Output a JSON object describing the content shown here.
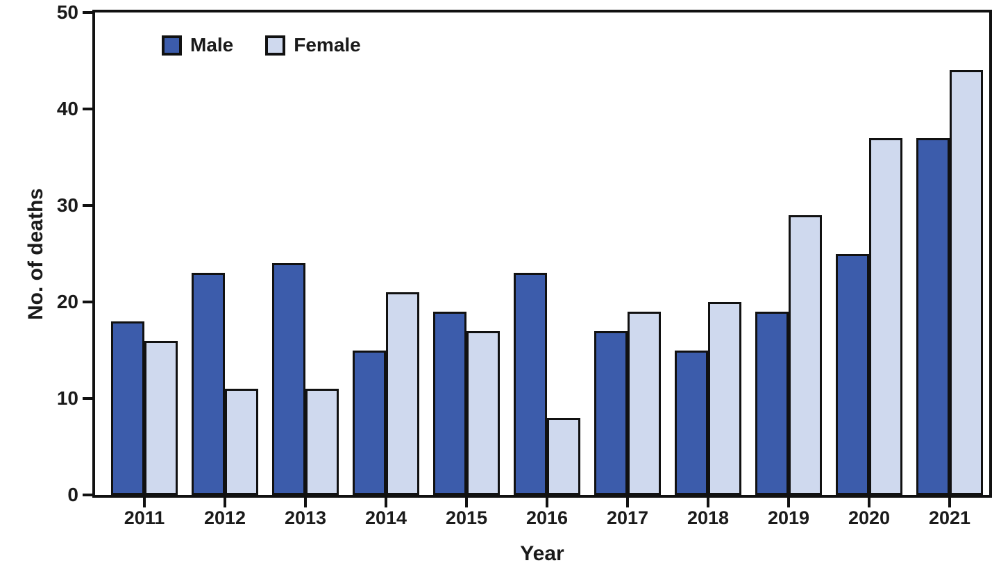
{
  "figure": {
    "background": "#ffffff",
    "text_color": "#1a1a1a",
    "axis_color": "#111111"
  },
  "chart_data": {
    "type": "bar",
    "categories": [
      "2011",
      "2012",
      "2013",
      "2014",
      "2015",
      "2016",
      "2017",
      "2018",
      "2019",
      "2020",
      "2021"
    ],
    "series": [
      {
        "name": "Male",
        "color": "#3C5CAB",
        "values": [
          18,
          23,
          24,
          15,
          19,
          23,
          17,
          15,
          19,
          25,
          37
        ]
      },
      {
        "name": "Female",
        "color": "#CFD9EE",
        "values": [
          16,
          11,
          11,
          21,
          17,
          8,
          19,
          20,
          29,
          37,
          44
        ]
      }
    ],
    "xlabel": "Year",
    "ylabel": "No. of deaths",
    "ylim": [
      0,
      50
    ],
    "yticks": [
      0,
      10,
      20,
      30,
      40,
      50
    ],
    "outline_color": "#111111",
    "legend_position": "top-left",
    "grid": false
  }
}
